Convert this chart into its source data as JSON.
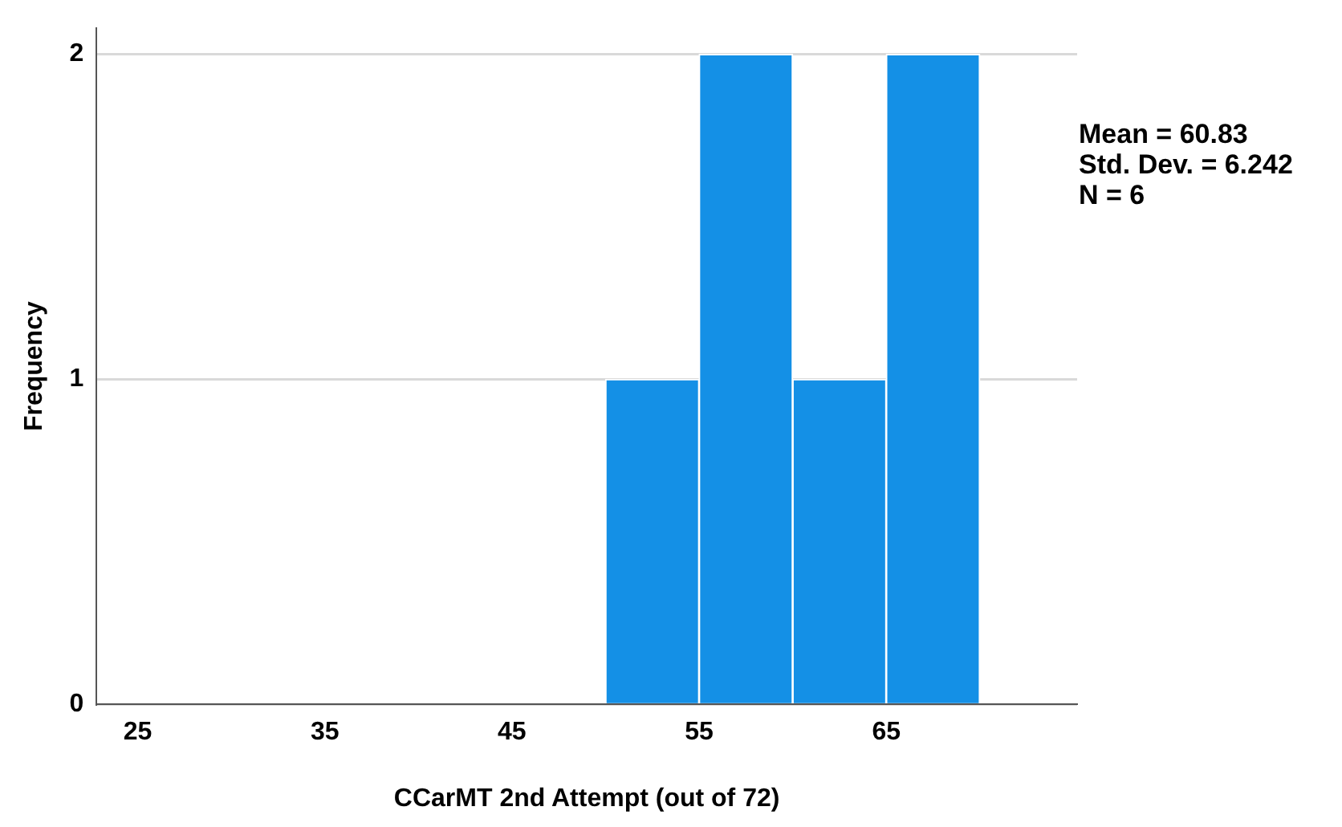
{
  "chart_data": {
    "type": "histogram",
    "xlabel": "CCarMT 2nd Attempt (out of 72)",
    "ylabel": "Frequency",
    "bins": [
      50,
      55,
      60,
      65,
      70
    ],
    "values": [
      1,
      2,
      1,
      2
    ],
    "color": "#1490e6",
    "xlim": [
      22.8,
      75.2
    ],
    "xticks": [
      25,
      35,
      45,
      55,
      65
    ],
    "ylim": [
      0,
      2.08
    ],
    "yticks": [
      0,
      1,
      2
    ],
    "grid": "y",
    "legend": false,
    "annotations": [
      "Mean = 60.83",
      "Std. Dev. = 6.242",
      "N = 6"
    ]
  }
}
